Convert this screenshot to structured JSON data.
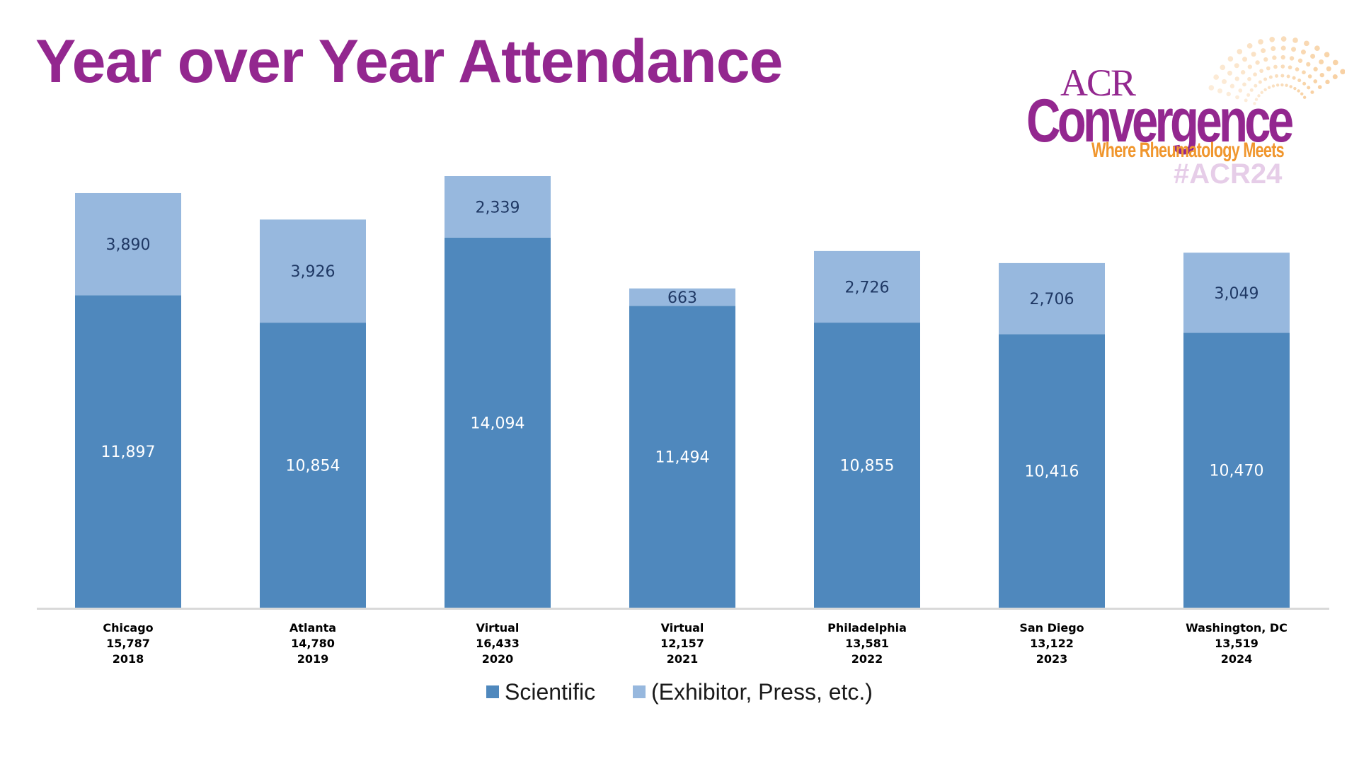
{
  "slide": {
    "title": "Year over Year Attendance"
  },
  "logo": {
    "acr": "ACR",
    "name": "Convergence",
    "tagline": "Where Rheumatology Meets",
    "hashtag": "#ACR24",
    "colors": {
      "primary": "#93278f",
      "accent": "#f0962d",
      "hashtag": "#e6cde8"
    }
  },
  "chart_data": {
    "type": "bar",
    "stacked": true,
    "title": "Year over Year Attendance",
    "xlabel": "",
    "ylabel": "",
    "ylim": [
      0,
      17000
    ],
    "grid": false,
    "legend_position": "bottom",
    "categories": [
      {
        "location": "Chicago",
        "total": "15,787",
        "year": "2018"
      },
      {
        "location": "Atlanta",
        "total": "14,780",
        "year": "2019"
      },
      {
        "location": "Virtual",
        "total": "16,433",
        "year": "2020"
      },
      {
        "location": "Virtual",
        "total": "12,157",
        "year": "2021"
      },
      {
        "location": "Philadelphia",
        "total": "13,581",
        "year": "2022"
      },
      {
        "location": "San Diego",
        "total": "13,122",
        "year": "2023"
      },
      {
        "location": "Washington, DC",
        "total": "13,519",
        "year": "2024"
      }
    ],
    "series": [
      {
        "name": "Scientific",
        "color": "#4f88bd",
        "label_color": "#ffffff",
        "values": [
          11897,
          10854,
          14094,
          11494,
          10855,
          10416,
          10470
        ],
        "labels": [
          "11,897",
          "10,854",
          "14,094",
          "11,494",
          "10,855",
          "10,416",
          "10,470"
        ]
      },
      {
        "name": "(Exhibitor, Press, etc.)",
        "color": "#97b8de",
        "label_color": "#1f3864",
        "values": [
          3890,
          3926,
          2339,
          663,
          2726,
          2706,
          3049
        ],
        "labels": [
          "3,890",
          "3,926",
          "2,339",
          "663",
          "2,726",
          "2,706",
          "3,049"
        ]
      }
    ]
  }
}
